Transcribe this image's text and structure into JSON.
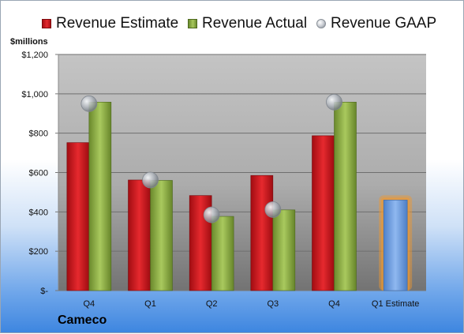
{
  "legend": {
    "estimate": "Revenue Estimate",
    "actual": "Revenue Actual",
    "gaap": "Revenue GAAP"
  },
  "company": "Cameco",
  "chart_data": {
    "type": "bar",
    "ylabel": "$millions",
    "ylim": [
      0,
      1200
    ],
    "yticks": [
      {
        "value": 0,
        "label": "$-"
      },
      {
        "value": 200,
        "label": "$200"
      },
      {
        "value": 400,
        "label": "$400"
      },
      {
        "value": 600,
        "label": "$600"
      },
      {
        "value": 800,
        "label": "$800"
      },
      {
        "value": 1000,
        "label": "$1,000"
      },
      {
        "value": 1200,
        "label": "$1,200"
      }
    ],
    "grid": true,
    "legend_position": "top",
    "categories": [
      "Q4",
      "Q1",
      "Q2",
      "Q3",
      "Q4",
      "Q1 Estimate"
    ],
    "series": [
      {
        "name": "Revenue Estimate",
        "kind": "bar",
        "color": "#d11d22",
        "values": [
          752,
          562,
          483,
          585,
          787,
          null
        ]
      },
      {
        "name": "Revenue Actual",
        "kind": "bar",
        "color": "#94b54a",
        "values": [
          958,
          560,
          377,
          410,
          958,
          460
        ]
      },
      {
        "name": "Revenue GAAP",
        "kind": "marker",
        "color": "#b8bcc2",
        "values": [
          950,
          562,
          385,
          412,
          958,
          null
        ]
      }
    ],
    "highlighted_bar": {
      "category": "Q1 Estimate",
      "value": 460,
      "color": "#6a9be0",
      "glow_color": "#f29a2e"
    }
  }
}
